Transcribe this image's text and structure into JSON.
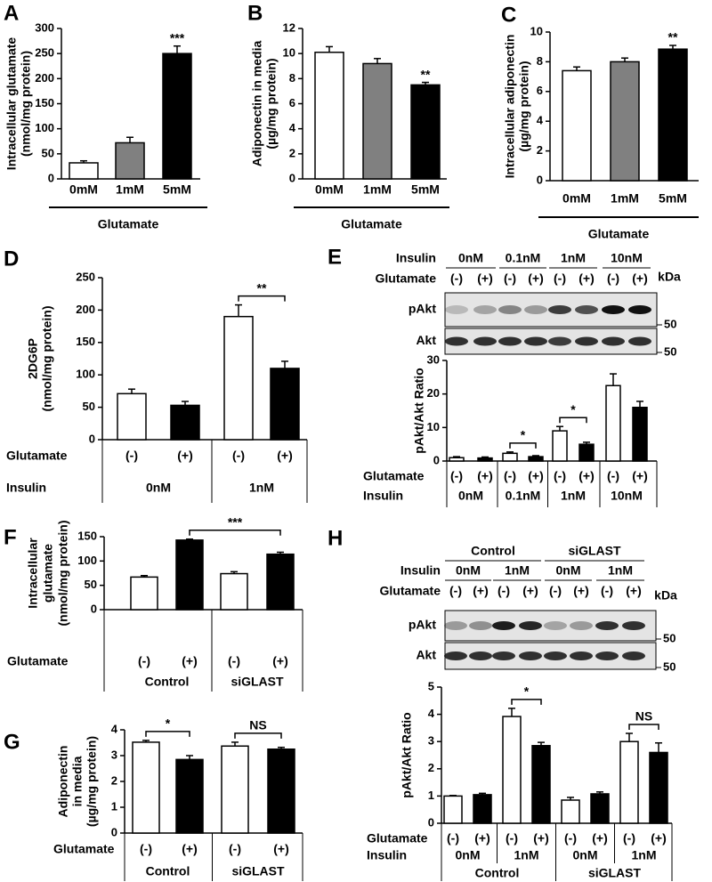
{
  "chart_data": [
    {
      "panel": "A",
      "type": "bar",
      "ylabel": [
        "Intracellular glutamate",
        "(nmol/mg protein)"
      ],
      "categories": [
        "0mM",
        "1mM",
        "5mM"
      ],
      "values": [
        32,
        72,
        250
      ],
      "errors": [
        4,
        11,
        15
      ],
      "colors": [
        "#ffffff",
        "#808080",
        "#000000"
      ],
      "ylim": [
        0,
        300
      ],
      "yticks": [
        0,
        50,
        100,
        150,
        200,
        250,
        300
      ],
      "xlabel": "Glutamate",
      "significance": [
        null,
        null,
        "***"
      ]
    },
    {
      "panel": "B",
      "type": "bar",
      "ylabel": [
        "Adiponectin in media",
        "(µg/mg protein)"
      ],
      "categories": [
        "0mM",
        "1mM",
        "5mM"
      ],
      "values": [
        10.1,
        9.2,
        7.5
      ],
      "errors": [
        0.45,
        0.4,
        0.2
      ],
      "colors": [
        "#ffffff",
        "#808080",
        "#000000"
      ],
      "ylim": [
        0,
        12
      ],
      "yticks": [
        0,
        2,
        4,
        6,
        8,
        10,
        12
      ],
      "xlabel": "Glutamate",
      "significance": [
        null,
        null,
        "**"
      ]
    },
    {
      "panel": "C",
      "type": "bar",
      "ylabel": [
        "Intracellular adiponectin",
        "(µg/mg protein)"
      ],
      "categories": [
        "0mM",
        "1mM",
        "5mM"
      ],
      "values": [
        7.4,
        8.0,
        8.85
      ],
      "errors": [
        0.25,
        0.25,
        0.25
      ],
      "colors": [
        "#ffffff",
        "#808080",
        "#000000"
      ],
      "ylim": [
        0,
        10
      ],
      "yticks": [
        0,
        2,
        4,
        6,
        8,
        10
      ],
      "xlabel": "Glutamate",
      "significance": [
        null,
        null,
        "**"
      ]
    },
    {
      "panel": "D",
      "type": "bar",
      "ylabel": [
        "2DG6P",
        "(nmol/mg protein)"
      ],
      "categories": [
        "(-)",
        "(+)",
        "(-)",
        "(+)"
      ],
      "category_label": "Glutamate",
      "values": [
        71,
        53,
        190,
        110
      ],
      "errors": [
        7,
        6,
        18,
        11
      ],
      "colors": [
        "#ffffff",
        "#000000",
        "#ffffff",
        "#000000"
      ],
      "ylim": [
        0,
        250
      ],
      "yticks": [
        0,
        50,
        100,
        150,
        200,
        250
      ],
      "levels": [
        {
          "label": "Insulin",
          "labels": [
            "0nM",
            "1nM"
          ]
        }
      ],
      "pair_labels": [
        null,
        "**"
      ]
    },
    {
      "panel": "E",
      "type": "bar",
      "ylabel": [
        "pAkt/Akt Ratio"
      ],
      "categories": [
        "(-)",
        "(+)",
        "(-)",
        "(+)",
        "(-)",
        "(+)",
        "(-)",
        "(+)"
      ],
      "category_label": "Glutamate",
      "values": [
        1.0,
        0.9,
        2.3,
        1.3,
        9.0,
        5.0,
        22.5,
        16.0
      ],
      "errors": [
        0.3,
        0.3,
        0.4,
        0.3,
        1.3,
        0.6,
        3.5,
        1.8
      ],
      "colors": [
        "#ffffff",
        "#000000",
        "#ffffff",
        "#000000",
        "#ffffff",
        "#000000",
        "#ffffff",
        "#000000"
      ],
      "ylim": [
        0,
        30
      ],
      "yticks": [
        0,
        10,
        20,
        30
      ],
      "levels": [
        {
          "label": "Insulin",
          "labels": [
            "0nM",
            "0.1nM",
            "1nM",
            "10nM"
          ]
        }
      ],
      "pair_labels": [
        null,
        "*",
        "*",
        null
      ],
      "blot": {
        "rows": [
          {
            "label": "Insulin",
            "labels": [
              "0nM",
              "0.1nM",
              "1nM",
              "10nM"
            ]
          },
          {
            "label": "Glutamate",
            "labels": [
              "(-)",
              "(+)",
              "(-)",
              "(+)",
              "(-)",
              "(+)",
              "(-)",
              "(+)"
            ]
          }
        ],
        "unit": "kDa",
        "bands": [
          {
            "label": "pAkt",
            "marker": 50
          },
          {
            "label": "Akt",
            "marker": 50
          }
        ]
      }
    },
    {
      "panel": "F",
      "type": "bar",
      "ylabel": [
        "Intracellular",
        "glutamate",
        "(nmol/mg protein)"
      ],
      "categories": [
        "(-)",
        "(+)",
        "(-)",
        "(+)"
      ],
      "category_label": "Glutamate",
      "values": [
        67,
        143,
        74,
        114
      ],
      "errors": [
        3,
        2,
        4,
        4
      ],
      "colors": [
        "#ffffff",
        "#000000",
        "#ffffff",
        "#000000"
      ],
      "ylim": [
        0,
        150
      ],
      "yticks": [
        0,
        50,
        100,
        150
      ],
      "levels": [
        {
          "labels": [
            "Control",
            "siGLAST"
          ]
        }
      ],
      "comparison_label": "***"
    },
    {
      "panel": "G",
      "type": "bar",
      "ylabel": [
        "Adiponectin",
        "in media",
        "(µg/mg protein)"
      ],
      "categories": [
        "(-)",
        "(+)",
        "(-)",
        "(+)"
      ],
      "category_label": "Glutamate",
      "values": [
        3.52,
        2.85,
        3.37,
        3.25
      ],
      "errors": [
        0.07,
        0.15,
        0.15,
        0.07
      ],
      "colors": [
        "#ffffff",
        "#000000",
        "#ffffff",
        "#000000"
      ],
      "ylim": [
        0,
        4
      ],
      "yticks": [
        0,
        1,
        2,
        3,
        4
      ],
      "levels": [
        {
          "labels": [
            "Control",
            "siGLAST"
          ]
        }
      ],
      "pair_labels": [
        "*",
        "NS"
      ]
    },
    {
      "panel": "H",
      "type": "bar",
      "ylabel": [
        "pAkt/Akt Ratio"
      ],
      "categories": [
        "(-)",
        "(+)",
        "(-)",
        "(+)",
        "(-)",
        "(+)",
        "(-)",
        "(+)"
      ],
      "category_label": "Glutamate",
      "values": [
        1.0,
        1.05,
        3.92,
        2.85,
        0.85,
        1.08,
        3.0,
        2.6
      ],
      "errors": [
        0.02,
        0.05,
        0.3,
        0.12,
        0.1,
        0.07,
        0.3,
        0.35
      ],
      "colors": [
        "#ffffff",
        "#000000",
        "#ffffff",
        "#000000",
        "#ffffff",
        "#000000",
        "#ffffff",
        "#000000"
      ],
      "ylim": [
        0,
        5
      ],
      "yticks": [
        0,
        1,
        2,
        3,
        4,
        5
      ],
      "levels": [
        {
          "label": "Insulin",
          "labels": [
            "0nM",
            "1nM",
            "0nM",
            "1nM"
          ]
        },
        {
          "labels": [
            "Control",
            "siGLAST"
          ]
        }
      ],
      "pair_labels": [
        null,
        "*",
        null,
        "NS"
      ],
      "blot": {
        "rows": [
          {
            "labels": [
              "Control",
              "siGLAST"
            ]
          },
          {
            "label": "Insulin",
            "labels": [
              "0nM",
              "1nM",
              "0nM",
              "1nM"
            ]
          },
          {
            "label": "Glutamate",
            "labels": [
              "(-)",
              "(+)",
              "(-)",
              "(+)",
              "(-)",
              "(+)",
              "(-)",
              "(+)"
            ]
          }
        ],
        "unit": "kDa",
        "bands": [
          {
            "label": "pAkt",
            "marker": 50
          },
          {
            "label": "Akt",
            "marker": 50
          }
        ]
      }
    }
  ]
}
